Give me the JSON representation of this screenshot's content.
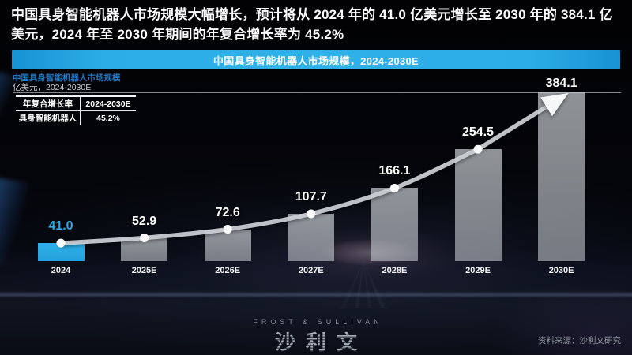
{
  "headline": "中国具身智能机器人市场规模大幅增长，预计将从 2024 年的 41.0 亿美元增长至 2030 年的 384.1 亿美元，2024 年至 2030 年期间的年复合增长率为 45.2%",
  "panel": {
    "header_title": "中国具身智能机器人市场规模，2024-2030E",
    "subtitle": "中国具身智能机器人市场规模",
    "unit_note": "亿美元，2024-2030E"
  },
  "cagr_table": {
    "col1_header": "年复合增长率",
    "col2_header": "2024-2030E",
    "row1_col1": "具身智能机器人",
    "row1_col2": "45.2%"
  },
  "chart_data": {
    "type": "bar",
    "title": "中国具身智能机器人市场规模，2024-2030E",
    "ylabel": "亿美元",
    "categories": [
      "2024",
      "2025E",
      "2026E",
      "2027E",
      "2028E",
      "2029E",
      "2030E"
    ],
    "values": [
      41.0,
      52.9,
      72.6,
      107.7,
      166.1,
      254.5,
      384.1
    ],
    "highlight_index": 0,
    "ylim": [
      0,
      384.1
    ],
    "grid": "single horizontal line at max value",
    "annotations": "white curved trend arrow through bar tops ending in arrowhead at 2030E",
    "legend_position": "none",
    "colors": {
      "highlight_bar": "#29a7e0",
      "bar": "#9aa0a7",
      "trend_line": "#ced3d8",
      "value_label": "#ffffff",
      "value_label_highlight": "#2fa9e2",
      "panel_header": "#29a9e1",
      "subtitle_blue": "#1f78c4"
    }
  },
  "footer": {
    "logo_en": "FROST & SULLIVAN",
    "logo_cn": "沙利文",
    "source": "资料来源：沙利文研究"
  }
}
